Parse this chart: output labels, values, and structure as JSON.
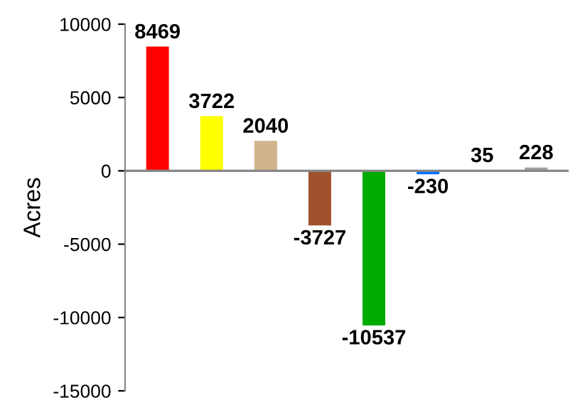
{
  "chart_data": {
    "type": "bar",
    "ylabel": "Acres",
    "categories": [
      null,
      null,
      null,
      null,
      null,
      null,
      null,
      null
    ],
    "values": [
      8469,
      3722,
      2040,
      -3727,
      -10537,
      -230,
      35,
      228
    ],
    "colors": [
      "#ff0000",
      "#ffff00",
      "#d2b48c",
      "#a0522d",
      "#00aa00",
      "#0070ff",
      "#a0a0a0",
      "#a0a0a0"
    ],
    "ylim": [
      -15000,
      10000
    ],
    "yticks": [
      -15000,
      -10000,
      -5000,
      0,
      5000,
      10000
    ],
    "ref_lines": [
      {
        "axis": "y",
        "value": 0,
        "color": "#888888"
      }
    ],
    "data_labels": true,
    "grid": false,
    "legend": false
  }
}
